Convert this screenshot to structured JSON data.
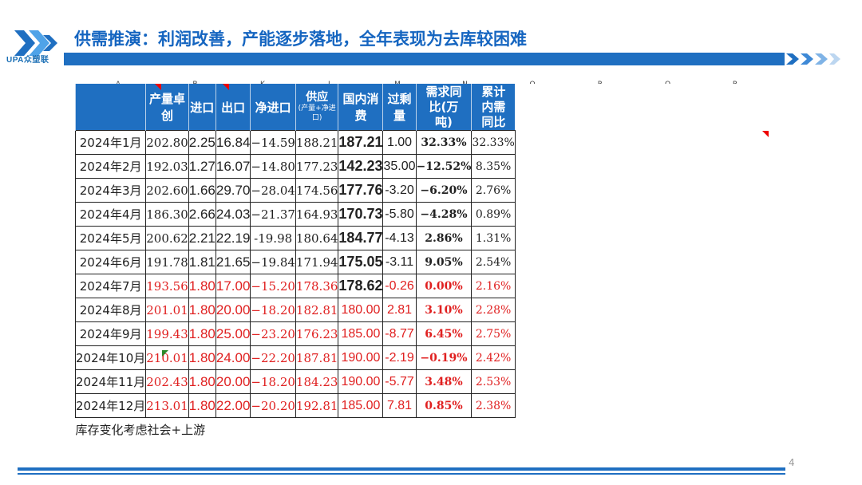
{
  "title": "供需推演：利润改善，产能逐步落地，全年表现为去库较困难",
  "logo": {
    "text": "UPA众塑联"
  },
  "page_number": "4",
  "colors": {
    "brand": "#1f6fc1",
    "header_bg": "#1f6fc1",
    "forecast_red": "#e02020"
  },
  "sheet": {
    "col_letters": [
      "A",
      "B",
      "K",
      "L",
      "M",
      "N",
      "O",
      "P",
      "Q",
      "R"
    ],
    "headers": [
      {
        "label": ""
      },
      {
        "label": "产量卓创"
      },
      {
        "label": "进口"
      },
      {
        "label": "出口"
      },
      {
        "label": "净进口"
      },
      {
        "label": "供应",
        "sub": "(产量+净进口)"
      },
      {
        "label": "国内消费"
      },
      {
        "label": "过剩量"
      },
      {
        "label": "需求同比(万吨)"
      },
      {
        "label": "累计内需同比"
      }
    ],
    "rows": [
      [
        "2024年1月",
        "202.80",
        "2.25",
        "16.84",
        "−14.59",
        "188.21",
        "187.21",
        "1.00",
        "32.33%",
        "32.33%"
      ],
      [
        "2024年2月",
        "192.03",
        "1.27",
        "16.07",
        "−14.80",
        "177.23",
        "142.23",
        "35.00",
        "−12.52%",
        "8.35%"
      ],
      [
        "2024年3月",
        "202.60",
        "1.66",
        "29.70",
        "−28.04",
        "174.56",
        "177.76",
        "-3.20",
        "−6.20%",
        "2.76%"
      ],
      [
        "2024年4月",
        "186.30",
        "2.66",
        "24.03",
        "−21.37",
        "164.93",
        "170.73",
        "-5.80",
        "−4.28%",
        "0.89%"
      ],
      [
        "2024年5月",
        "200.62",
        "2.21",
        "22.19",
        "-19.98",
        "180.64",
        "184.77",
        "-4.13",
        "2.86%",
        "1.31%"
      ],
      [
        "2024年6月",
        "191.78",
        "1.81",
        "21.65",
        "−19.84",
        "171.94",
        "175.05",
        "-3.11",
        "9.05%",
        "2.54%"
      ],
      [
        "2024年7月",
        "193.56",
        "1.80",
        "17.00",
        "−15.20",
        "178.36",
        "178.62",
        "-0.26",
        "0.00%",
        "2.16%"
      ],
      [
        "2024年8月",
        "201.01",
        "1.80",
        "20.00",
        "−18.20",
        "182.81",
        "180.00",
        "2.81",
        "3.10%",
        "2.28%"
      ],
      [
        "2024年9月",
        "199.43",
        "1.80",
        "25.00",
        "−23.20",
        "176.23",
        "185.00",
        "-8.77",
        "6.45%",
        "2.75%"
      ],
      [
        "2024年10月",
        "210.01",
        "1.80",
        "24.00",
        "−22.20",
        "187.81",
        "190.00",
        "-2.19",
        "−0.19%",
        "2.42%"
      ],
      [
        "2024年11月",
        "202.43",
        "1.80",
        "20.00",
        "−18.20",
        "184.23",
        "190.00",
        "-5.77",
        "3.48%",
        "2.53%"
      ],
      [
        "2024年12月",
        "213.01",
        "1.80",
        "22.00",
        "−20.20",
        "192.81",
        "185.00",
        "7.81",
        "0.85%",
        "2.38%"
      ]
    ],
    "footnote": "库存变化考虑社会+上游"
  }
}
